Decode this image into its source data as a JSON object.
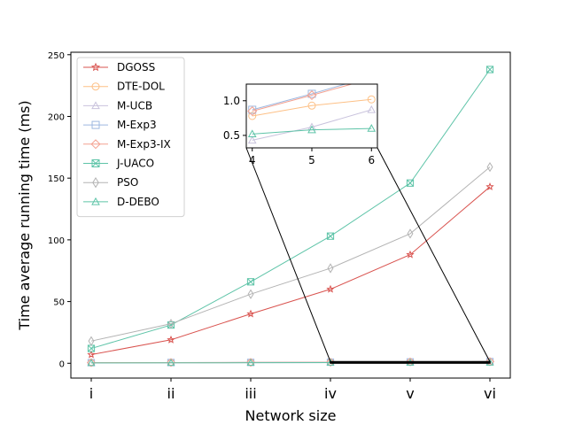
{
  "chart_data": {
    "type": "line",
    "xlabel": "Network size",
    "ylabel": "Time average running time (ms)",
    "categories": [
      "i",
      "ii",
      "iii",
      "iv",
      "v",
      "vi"
    ],
    "ylim": [
      -12,
      252
    ],
    "yticks": [
      0,
      50,
      100,
      150,
      200,
      250
    ],
    "legend_position": "upper-left",
    "series": [
      {
        "name": "DGOSS",
        "color": "#d9534f",
        "marker": "star",
        "values": [
          7,
          19,
          40,
          60,
          88,
          143
        ]
      },
      {
        "name": "DTE-DOL",
        "color": "#fdc086",
        "marker": "circle",
        "values": [
          0.3,
          0.5,
          0.6,
          0.78,
          0.93,
          1.02
        ]
      },
      {
        "name": "M-UCB",
        "color": "#c9c3dd",
        "marker": "triangle",
        "values": [
          0.2,
          0.3,
          0.35,
          0.43,
          0.62,
          0.87
        ]
      },
      {
        "name": "M-Exp3",
        "color": "#9db8e0",
        "marker": "square",
        "values": [
          0.5,
          0.6,
          0.7,
          0.87,
          1.1,
          1.35
        ]
      },
      {
        "name": "M-Exp3-IX",
        "color": "#f4a190",
        "marker": "diamond",
        "values": [
          0.5,
          0.6,
          0.7,
          0.85,
          1.08,
          1.32
        ]
      },
      {
        "name": "J-UACO",
        "color": "#5ec4a8",
        "marker": "xsquare",
        "values": [
          12,
          31,
          66,
          103,
          146,
          238
        ]
      },
      {
        "name": "PSO",
        "color": "#b3b3b3",
        "marker": "thindiamond",
        "values": [
          18,
          32,
          56,
          77,
          105,
          159
        ]
      },
      {
        "name": "D-DEBO",
        "color": "#5ec4a8",
        "marker": "triangle",
        "values": [
          0.3,
          0.35,
          0.45,
          0.52,
          0.58,
          0.6
        ]
      }
    ],
    "inset": {
      "x": [
        4,
        5,
        6
      ],
      "xticks": [
        4,
        5,
        6
      ],
      "yticks": [
        0.5,
        1.0
      ],
      "xlim": [
        3.9,
        6.1
      ],
      "ylim": [
        0.32,
        1.24
      ],
      "category_index_start": 3
    }
  }
}
